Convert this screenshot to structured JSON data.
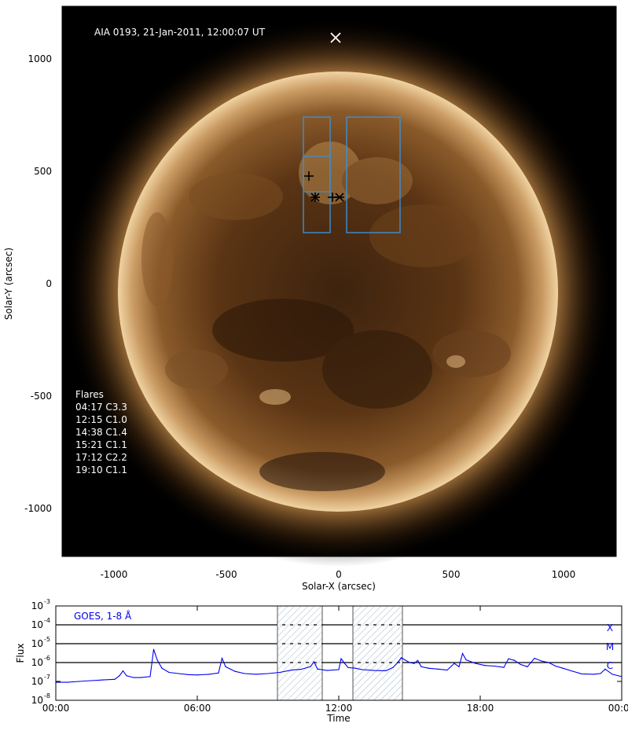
{
  "image_panel": {
    "title": "AIA 0193, 21-Jan-2011, 12:00:07 UT",
    "xlabel": "Solar-X (arcsec)",
    "ylabel": "Solar-Y (arcsec)",
    "x_ticks": [
      "-1000",
      "-500",
      "0",
      "500",
      "1000"
    ],
    "y_ticks": [
      "1000",
      "500",
      "0",
      "-500",
      "-1000"
    ],
    "flares_heading": "Flares",
    "flares": [
      "04:17 C3.3",
      "12:15 C1.0",
      "14:38 C1.4",
      "15:21 C1.1",
      "17:12 C2.2",
      "19:10 C1.1"
    ],
    "colors": {
      "sun_core": "#4a2a10",
      "sun_limb": "#f2d6a8",
      "box": "#3d8fd6",
      "background": "#000000"
    }
  },
  "chart_data": {
    "type": "line",
    "title": "",
    "xlabel": "Time",
    "ylabel": "Flux",
    "legend": "GOES, 1-8 Å",
    "xlim": [
      0,
      24
    ],
    "ylim_exp": [
      -8,
      -3
    ],
    "yscale": "log",
    "x_ticks": [
      "00:00",
      "06:00",
      "12:00",
      "18:00",
      "00:00"
    ],
    "y_tick_exponents": [
      "-3",
      "-4",
      "-5",
      "-6",
      "-7",
      "-8"
    ],
    "class_labels": [
      "X",
      "M",
      "C"
    ],
    "class_thresholds_exp": [
      -4,
      -5,
      -6
    ],
    "shaded_intervals_hours": [
      [
        9.4,
        11.3
      ],
      [
        12.6,
        14.7
      ]
    ],
    "series": [
      {
        "color": "#0000ee",
        "x": [
          0,
          0.5,
          1,
          1.5,
          2,
          2.5,
          2.7,
          2.85,
          3,
          3.3,
          3.6,
          4,
          4.15,
          4.3,
          4.5,
          4.8,
          5.2,
          5.6,
          6,
          6.5,
          6.9,
          7.05,
          7.2,
          7.6,
          8,
          8.5,
          9,
          9.5,
          10,
          10.4,
          10.8,
          10.95,
          11.1,
          11.5,
          12,
          12.1,
          12.25,
          12.4,
          12.7,
          13,
          13.5,
          14,
          14.3,
          14.5,
          14.65,
          14.8,
          15,
          15.2,
          15.35,
          15.5,
          15.8,
          16.2,
          16.6,
          16.9,
          17.1,
          17.25,
          17.4,
          17.8,
          18.2,
          18.6,
          19,
          19.2,
          19.45,
          19.7,
          20,
          20.3,
          20.6,
          20.9,
          21.2,
          21.5,
          21.9,
          22.3,
          22.8,
          23.1,
          23.3,
          23.6,
          24
        ],
        "y": [
          9e-08,
          9e-08,
          1e-07,
          1.1e-07,
          1.2e-07,
          1.3e-07,
          2e-07,
          3.6e-07,
          2e-07,
          1.6e-07,
          1.6e-07,
          1.8e-07,
          5e-06,
          1.4e-06,
          5e-07,
          3e-07,
          2.6e-07,
          2.3e-07,
          2.2e-07,
          2.4e-07,
          2.8e-07,
          1.7e-06,
          6e-07,
          3.4e-07,
          2.6e-07,
          2.4e-07,
          2.6e-07,
          3e-07,
          4e-07,
          4.4e-07,
          6e-07,
          1.1e-06,
          4.5e-07,
          3.8e-07,
          4.2e-07,
          1.6e-06,
          9e-07,
          5.4e-07,
          5e-07,
          4.2e-07,
          3.8e-07,
          3.7e-07,
          5.5e-07,
          1e-06,
          1.8e-06,
          1.4e-06,
          1e-06,
          9e-07,
          1.3e-06,
          6e-07,
          5e-07,
          4.5e-07,
          4e-07,
          9e-07,
          6e-07,
          3e-06,
          1.4e-06,
          9e-07,
          7e-07,
          6.5e-07,
          5.5e-07,
          1.6e-06,
          1.3e-06,
          8e-07,
          6e-07,
          1.7e-06,
          1.2e-06,
          1e-06,
          6.5e-07,
          5e-07,
          3.5e-07,
          2.5e-07,
          2.4e-07,
          2.6e-07,
          4.5e-07,
          2.4e-07,
          1.8e-07
        ]
      }
    ]
  }
}
